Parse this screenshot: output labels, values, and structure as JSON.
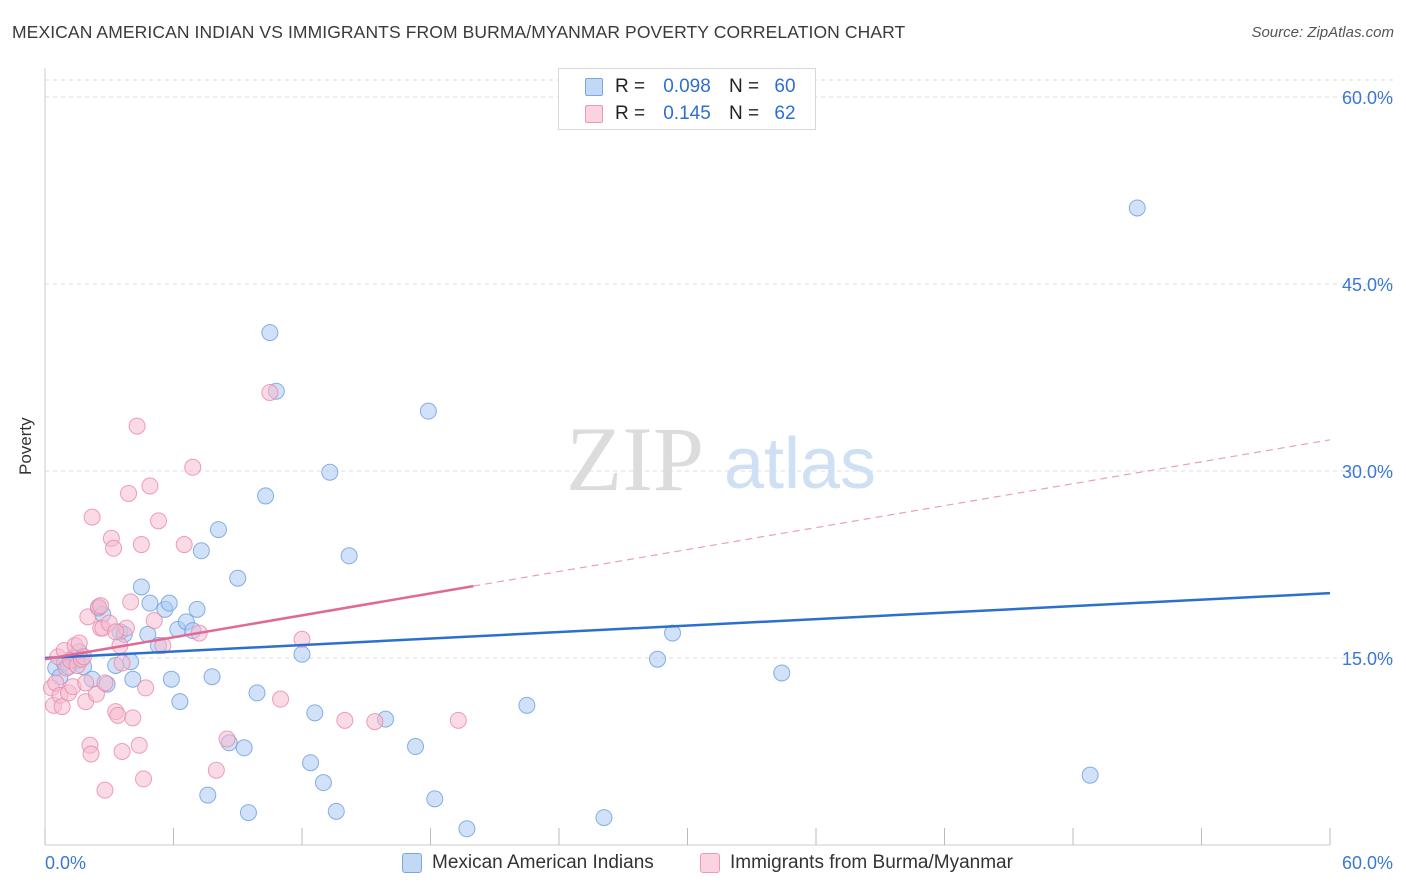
{
  "header": {
    "title": "MEXICAN AMERICAN INDIAN VS IMMIGRANTS FROM BURMA/MYANMAR POVERTY CORRELATION CHART",
    "source": "Source: ZipAtlas.com"
  },
  "legend": {
    "rows": [
      {
        "r_label": "R =",
        "r_value": "0.098",
        "n_label": "N =",
        "n_value": "60",
        "color": "#a9c8f2"
      },
      {
        "r_label": "R =",
        "r_value": "0.145",
        "n_label": "N =",
        "n_value": "62",
        "color": "#f6bcd0"
      }
    ]
  },
  "watermark": {
    "zip": "ZIP",
    "atlas": "atlas"
  },
  "chart_data": {
    "type": "scatter",
    "title": "MEXICAN AMERICAN INDIAN VS IMMIGRANTS FROM BURMA/MYANMAR POVERTY CORRELATION CHART",
    "xlabel": "",
    "ylabel": "Poverty",
    "xlim": [
      0,
      60
    ],
    "ylim": [
      0,
      60
    ],
    "x_tick_labels": [
      "0.0%",
      "60.0%"
    ],
    "y_ticks": [
      15,
      30,
      45,
      60
    ],
    "y_tick_labels": [
      "15.0%",
      "30.0%",
      "45.0%",
      "60.0%"
    ],
    "grid": true,
    "legend_position": "top-center",
    "series": [
      {
        "name": "Mexican American Indians",
        "color": "#6a9de0",
        "fill": "#a9c8f2",
        "trend": {
          "x0": 0,
          "y0": 15.0,
          "x1": 60,
          "y1": 20.2,
          "dashed_from": null
        },
        "points": [
          [
            0.5,
            14.2
          ],
          [
            0.7,
            13.5
          ],
          [
            0.9,
            14.6
          ],
          [
            1.1,
            14.3
          ],
          [
            1.3,
            15.0
          ],
          [
            1.5,
            14.8
          ],
          [
            1.6,
            15.5
          ],
          [
            1.8,
            14.3
          ],
          [
            2.2,
            13.3
          ],
          [
            2.5,
            19.0
          ],
          [
            2.7,
            18.5
          ],
          [
            2.9,
            12.9
          ],
          [
            3.3,
            14.4
          ],
          [
            3.5,
            17.1
          ],
          [
            3.7,
            16.9
          ],
          [
            4.0,
            14.7
          ],
          [
            4.1,
            13.3
          ],
          [
            4.5,
            20.7
          ],
          [
            4.8,
            16.9
          ],
          [
            4.9,
            19.4
          ],
          [
            5.3,
            16.0
          ],
          [
            5.6,
            18.9
          ],
          [
            5.8,
            19.4
          ],
          [
            5.9,
            13.3
          ],
          [
            6.2,
            17.3
          ],
          [
            6.3,
            11.5
          ],
          [
            6.6,
            17.9
          ],
          [
            6.9,
            17.2
          ],
          [
            7.1,
            18.9
          ],
          [
            7.3,
            23.6
          ],
          [
            7.6,
            4.0
          ],
          [
            7.8,
            13.5
          ],
          [
            8.1,
            25.3
          ],
          [
            8.6,
            8.2
          ],
          [
            9.0,
            21.4
          ],
          [
            9.3,
            7.8
          ],
          [
            9.5,
            2.6
          ],
          [
            9.9,
            12.2
          ],
          [
            10.3,
            28.0
          ],
          [
            10.5,
            41.1
          ],
          [
            10.8,
            36.4
          ],
          [
            12.0,
            15.3
          ],
          [
            12.4,
            6.6
          ],
          [
            12.6,
            10.6
          ],
          [
            13.0,
            5.0
          ],
          [
            13.3,
            29.9
          ],
          [
            13.6,
            2.7
          ],
          [
            14.2,
            23.2
          ],
          [
            15.9,
            10.1
          ],
          [
            17.3,
            7.9
          ],
          [
            17.9,
            34.8
          ],
          [
            18.2,
            3.7
          ],
          [
            19.7,
            1.3
          ],
          [
            22.5,
            11.2
          ],
          [
            26.1,
            2.2
          ],
          [
            28.6,
            14.9
          ],
          [
            29.3,
            17.0
          ],
          [
            34.4,
            13.8
          ],
          [
            48.8,
            5.6
          ],
          [
            51.0,
            51.1
          ]
        ]
      },
      {
        "name": "Immigrants from Burma/Myanmar",
        "color": "#e888a8",
        "fill": "#f6bcd0",
        "trend": {
          "x0": 0,
          "y0": 14.9,
          "x1": 60,
          "y1": 32.5,
          "solid_until_x": 20
        },
        "points": [
          [
            0.3,
            12.6
          ],
          [
            0.4,
            11.2
          ],
          [
            0.5,
            13.0
          ],
          [
            0.6,
            15.1
          ],
          [
            0.7,
            12.0
          ],
          [
            0.8,
            11.1
          ],
          [
            0.9,
            15.6
          ],
          [
            1.0,
            14.2
          ],
          [
            1.1,
            12.2
          ],
          [
            1.2,
            14.8
          ],
          [
            1.3,
            12.7
          ],
          [
            1.4,
            16.0
          ],
          [
            1.5,
            14.4
          ],
          [
            1.6,
            16.2
          ],
          [
            1.7,
            14.9
          ],
          [
            1.8,
            15.1
          ],
          [
            1.9,
            11.5
          ],
          [
            2.0,
            18.3
          ],
          [
            2.1,
            8.0
          ],
          [
            2.15,
            7.3
          ],
          [
            2.2,
            26.3
          ],
          [
            2.4,
            12.1
          ],
          [
            2.5,
            19.1
          ],
          [
            2.6,
            19.2
          ],
          [
            2.6,
            17.4
          ],
          [
            2.7,
            17.4
          ],
          [
            2.8,
            13.0
          ],
          [
            3.0,
            17.8
          ],
          [
            3.1,
            24.6
          ],
          [
            3.2,
            23.8
          ],
          [
            3.3,
            10.7
          ],
          [
            3.4,
            10.4
          ],
          [
            3.5,
            16.0
          ],
          [
            3.6,
            7.5
          ],
          [
            3.6,
            14.6
          ],
          [
            3.8,
            17.4
          ],
          [
            3.9,
            28.2
          ],
          [
            4.0,
            19.5
          ],
          [
            4.1,
            10.2
          ],
          [
            4.3,
            33.6
          ],
          [
            4.4,
            8.0
          ],
          [
            4.5,
            24.1
          ],
          [
            4.6,
            5.3
          ],
          [
            4.7,
            12.6
          ],
          [
            4.9,
            28.8
          ],
          [
            5.1,
            18.0
          ],
          [
            5.3,
            26.0
          ],
          [
            5.5,
            16.0
          ],
          [
            6.5,
            24.1
          ],
          [
            6.9,
            30.3
          ],
          [
            7.2,
            17.0
          ],
          [
            8.0,
            6.0
          ],
          [
            8.5,
            8.5
          ],
          [
            10.5,
            36.3
          ],
          [
            11.0,
            11.7
          ],
          [
            12.0,
            16.5
          ],
          [
            14.0,
            10.0
          ],
          [
            15.4,
            9.9
          ],
          [
            19.3,
            10.0
          ],
          [
            2.8,
            4.4
          ],
          [
            1.9,
            13.0
          ],
          [
            3.3,
            17.1
          ]
        ]
      }
    ]
  },
  "bottom_legend": {
    "items": [
      {
        "label": "Mexican American Indians"
      },
      {
        "label": "Immigrants from Burma/Myanmar"
      }
    ]
  }
}
